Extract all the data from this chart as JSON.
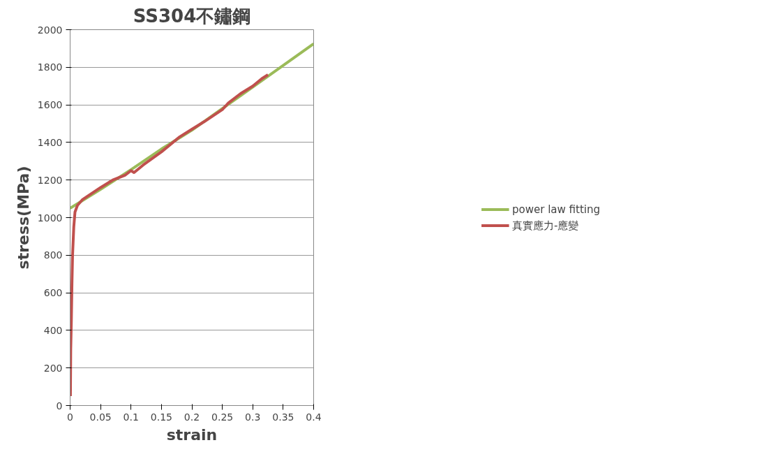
{
  "chart_data": {
    "type": "line",
    "title": "SS304不鏽鋼",
    "xlabel": "strain",
    "ylabel": "stress(MPa)",
    "xlim": [
      0,
      0.4
    ],
    "xticks": [
      0,
      0.05,
      0.1,
      0.15,
      0.2,
      0.25,
      0.3,
      0.35,
      0.4
    ],
    "ylim": [
      0,
      2000
    ],
    "yticks": [
      0,
      200,
      400,
      600,
      800,
      1000,
      1200,
      1400,
      1600,
      1800,
      2000
    ],
    "grid": "y",
    "legend": "right",
    "series": [
      {
        "name": "power law fitting",
        "color": "#9bbb59",
        "x": [
          0,
          0.05,
          0.1,
          0.15,
          0.2,
          0.25,
          0.3,
          0.35,
          0.4
        ],
        "values": [
          1050,
          1150,
          1255,
          1365,
          1465,
          1580,
          1695,
          1810,
          1925
        ]
      },
      {
        "name": "真實應力-應變",
        "color": "#c0504d",
        "x": [
          0.0005,
          0.001,
          0.002,
          0.003,
          0.004,
          0.006,
          0.008,
          0.012,
          0.02,
          0.05,
          0.07,
          0.09,
          0.1,
          0.105,
          0.12,
          0.15,
          0.18,
          0.2,
          0.22,
          0.25,
          0.26,
          0.28,
          0.3,
          0.315,
          0.325
        ],
        "values": [
          50,
          300,
          450,
          650,
          800,
          950,
          1030,
          1065,
          1095,
          1160,
          1200,
          1225,
          1250,
          1240,
          1280,
          1350,
          1430,
          1470,
          1510,
          1575,
          1610,
          1660,
          1700,
          1740,
          1760
        ]
      }
    ]
  }
}
